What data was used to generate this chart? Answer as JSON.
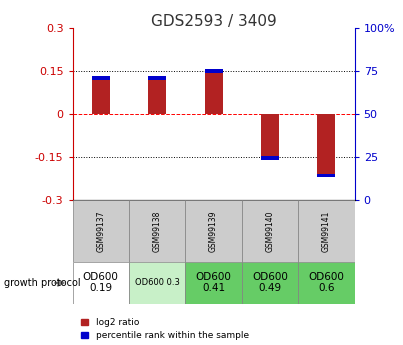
{
  "title": "GDS2593 / 3409",
  "samples": [
    "GSM99137",
    "GSM99138",
    "GSM99139",
    "GSM99140",
    "GSM99141"
  ],
  "log2_ratio": [
    0.13,
    0.13,
    0.155,
    -0.16,
    -0.22
  ],
  "percentile_rank_pct": [
    67,
    67,
    78,
    24,
    24
  ],
  "ylim_left": [
    -0.3,
    0.3
  ],
  "ylim_right": [
    0,
    100
  ],
  "yticks_left": [
    -0.3,
    -0.15,
    0,
    0.15,
    0.3
  ],
  "yticks_right": [
    0,
    25,
    50,
    75,
    100
  ],
  "bar_color_red": "#B22222",
  "bar_color_blue": "#0000CC",
  "left_axis_color": "#CC0000",
  "right_axis_color": "#0000CC",
  "growth_protocol_labels": [
    "OD600\n0.19",
    "OD600 0.3",
    "OD600\n0.41",
    "OD600\n0.49",
    "OD600\n0.6"
  ],
  "growth_protocol_bg": [
    "#ffffff",
    "#c8f0c8",
    "#66cc66",
    "#66cc66",
    "#66cc66"
  ],
  "growth_protocol_fontsize": [
    7.5,
    6,
    7.5,
    7.5,
    7.5
  ],
  "legend_red_label": "log2 ratio",
  "legend_blue_label": "percentile rank within the sample",
  "bar_width": 0.32,
  "blue_bar_height": 0.012
}
